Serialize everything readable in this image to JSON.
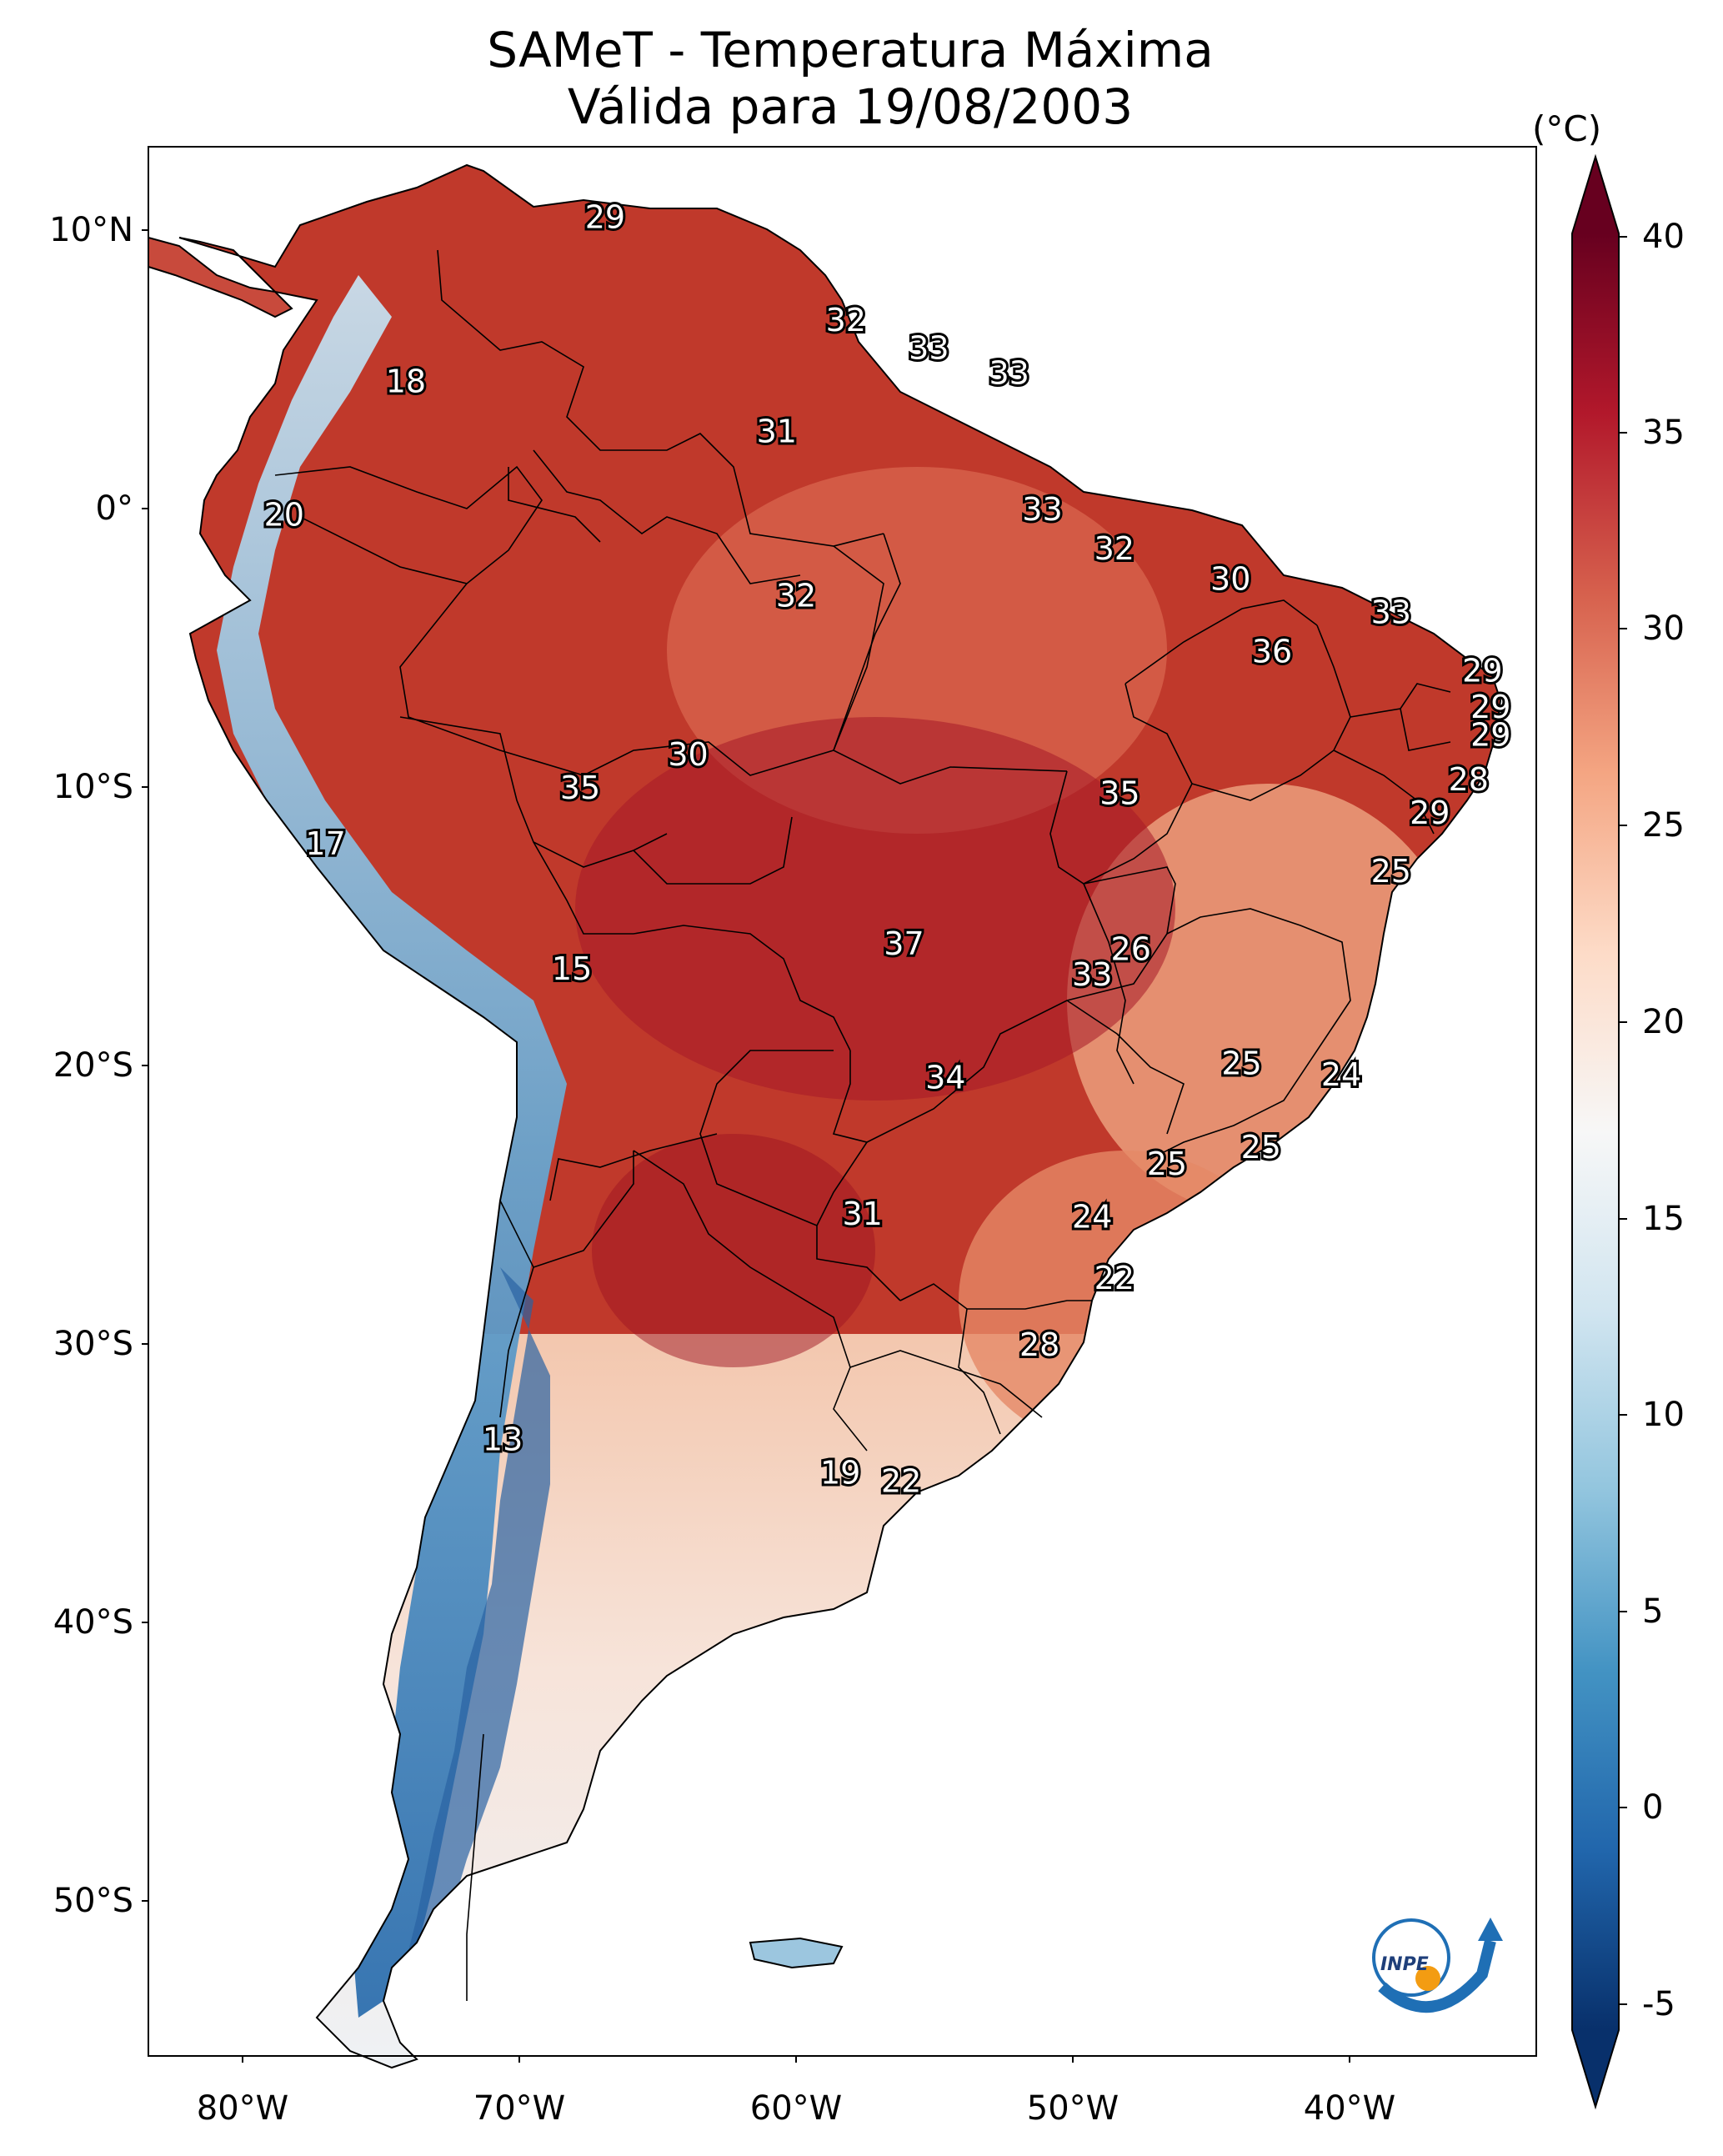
{
  "title": {
    "line1": "SAMeT - Temperatura Máxima",
    "line2": "Válida para 19/08/2003"
  },
  "axes": {
    "lat_ticks": [
      "10°N",
      "0°",
      "10°S",
      "20°S",
      "30°S",
      "40°S",
      "50°S"
    ],
    "lon_ticks": [
      "80°W",
      "70°W",
      "60°W",
      "50°W",
      "40°W"
    ]
  },
  "colorbar": {
    "unit": "(°C)",
    "ticks": [
      "40",
      "35",
      "30",
      "25",
      "20",
      "15",
      "10",
      "5",
      "0",
      "-5"
    ],
    "range": [
      -5,
      40
    ],
    "colors": [
      "#08306b",
      "#2166ac",
      "#4393c3",
      "#92c5de",
      "#d1e5f0",
      "#f7f7f7",
      "#fddbc7",
      "#f4a582",
      "#d6604d",
      "#b2182b",
      "#67001f"
    ]
  },
  "city_labels": [
    {
      "value": "29",
      "lon": -66.9,
      "lat": 10.5
    },
    {
      "value": "18",
      "lon": -74.1,
      "lat": 4.6
    },
    {
      "value": "32",
      "lon": -58.2,
      "lat": 6.8
    },
    {
      "value": "33",
      "lon": -55.2,
      "lat": 5.8
    },
    {
      "value": "33",
      "lon": -52.3,
      "lat": 4.9
    },
    {
      "value": "31",
      "lon": -60.7,
      "lat": 2.8
    },
    {
      "value": "20",
      "lon": -78.5,
      "lat": -0.2
    },
    {
      "value": "33",
      "lon": -51.1,
      "lat": 0.0
    },
    {
      "value": "32",
      "lon": -48.5,
      "lat": -1.4
    },
    {
      "value": "30",
      "lon": -44.3,
      "lat": -2.5
    },
    {
      "value": "32",
      "lon": -60.0,
      "lat": -3.1
    },
    {
      "value": "33",
      "lon": -38.5,
      "lat": -3.7
    },
    {
      "value": "36",
      "lon": -42.8,
      "lat": -5.1
    },
    {
      "value": "29",
      "lon": -35.2,
      "lat": -5.8
    },
    {
      "value": "29",
      "lon": -34.9,
      "lat": -7.1
    },
    {
      "value": "29",
      "lon": -34.9,
      "lat": -8.1
    },
    {
      "value": "28",
      "lon": -35.7,
      "lat": -9.7
    },
    {
      "value": "29",
      "lon": -37.1,
      "lat": -10.9
    },
    {
      "value": "30",
      "lon": -63.9,
      "lat": -8.8
    },
    {
      "value": "35",
      "lon": -67.8,
      "lat": -10.0
    },
    {
      "value": "35",
      "lon": -48.3,
      "lat": -10.2
    },
    {
      "value": "17",
      "lon": -77.0,
      "lat": -12.0
    },
    {
      "value": "25",
      "lon": -38.5,
      "lat": -13.0
    },
    {
      "value": "37",
      "lon": -56.1,
      "lat": -15.6
    },
    {
      "value": "26",
      "lon": -47.9,
      "lat": -15.8
    },
    {
      "value": "33",
      "lon": -49.3,
      "lat": -16.7
    },
    {
      "value": "15",
      "lon": -68.1,
      "lat": -16.5
    },
    {
      "value": "25",
      "lon": -43.9,
      "lat": -19.9
    },
    {
      "value": "24",
      "lon": -40.3,
      "lat": -20.3
    },
    {
      "value": "34",
      "lon": -54.6,
      "lat": -20.4
    },
    {
      "value": "25",
      "lon": -43.2,
      "lat": -22.9
    },
    {
      "value": "25",
      "lon": -46.6,
      "lat": -23.5
    },
    {
      "value": "31",
      "lon": -57.6,
      "lat": -25.3
    },
    {
      "value": "24",
      "lon": -49.3,
      "lat": -25.4
    },
    {
      "value": "22",
      "lon": -48.5,
      "lat": -27.6
    },
    {
      "value": "28",
      "lon": -51.2,
      "lat": -30.0
    },
    {
      "value": "13",
      "lon": -70.6,
      "lat": -33.4
    },
    {
      "value": "19",
      "lon": -58.4,
      "lat": -34.6
    },
    {
      "value": "22",
      "lon": -56.2,
      "lat": -34.9
    }
  ],
  "logo": {
    "text": "INPE"
  }
}
